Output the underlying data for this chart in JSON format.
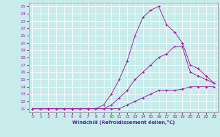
{
  "xlabel": "Windchill (Refroidissement éolien,°C)",
  "xlim": [
    -0.5,
    23.5
  ],
  "ylim": [
    10.5,
    25.5
  ],
  "yticks": [
    11,
    12,
    13,
    14,
    15,
    16,
    17,
    18,
    19,
    20,
    21,
    22,
    23,
    24,
    25
  ],
  "xticks": [
    0,
    1,
    2,
    3,
    4,
    5,
    6,
    7,
    8,
    9,
    10,
    11,
    12,
    13,
    14,
    15,
    16,
    17,
    18,
    19,
    20,
    21,
    22,
    23
  ],
  "bg_color": "#c8ecec",
  "grid_color": "#b0d8d8",
  "line_color": "#a020a0",
  "curve1_x": [
    0,
    1,
    2,
    3,
    4,
    5,
    6,
    7,
    8,
    9,
    10,
    11,
    12,
    13,
    14,
    15,
    16,
    17,
    18,
    19,
    20,
    21,
    22,
    23
  ],
  "curve1_y": [
    11,
    11,
    11,
    11,
    11,
    11,
    11,
    11,
    11,
    11,
    11,
    11,
    11.5,
    12,
    12.5,
    13,
    13.5,
    13.5,
    13.5,
    13.7,
    14,
    14,
    14,
    14
  ],
  "curve2_x": [
    0,
    1,
    2,
    3,
    4,
    5,
    6,
    7,
    8,
    9,
    10,
    11,
    12,
    13,
    14,
    15,
    16,
    17,
    18,
    19,
    20,
    21,
    22,
    23
  ],
  "curve2_y": [
    11,
    11,
    11,
    11,
    11,
    11,
    11,
    11,
    11,
    11,
    11.5,
    12.5,
    13.5,
    15,
    16,
    17,
    18,
    18.5,
    19.5,
    19.5,
    16,
    15.5,
    15,
    14.5
  ],
  "curve3_x": [
    0,
    1,
    2,
    3,
    4,
    5,
    6,
    7,
    8,
    9,
    10,
    11,
    12,
    13,
    14,
    15,
    16,
    17,
    18,
    19,
    20,
    21,
    22,
    23
  ],
  "curve3_y": [
    11,
    11,
    11,
    11,
    11,
    11,
    11,
    11,
    11,
    11.5,
    13,
    15,
    17.5,
    21,
    23.5,
    24.5,
    25,
    22.5,
    21.5,
    20,
    17,
    16.5,
    15.5,
    14.5
  ]
}
